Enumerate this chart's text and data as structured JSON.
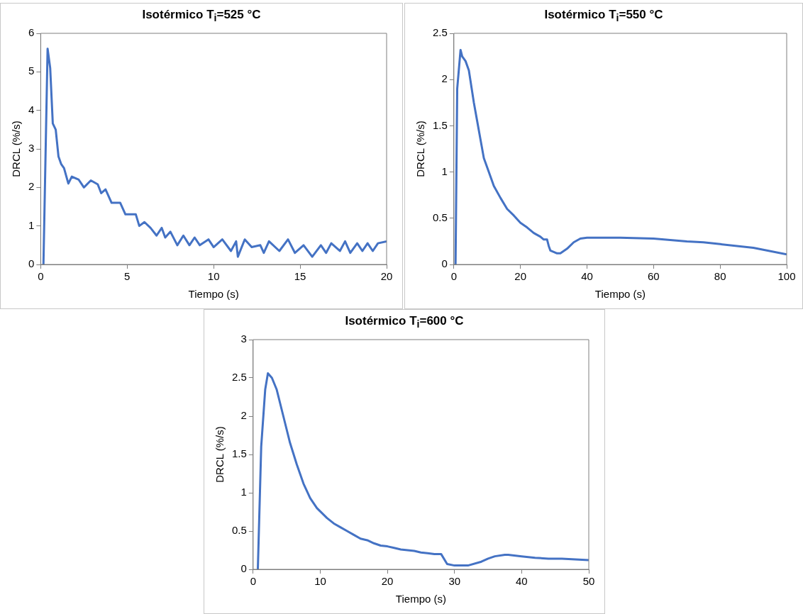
{
  "chart_data": [
    {
      "type": "line",
      "title": "Isotérmico T$_{i}$=525 °C",
      "xlabel": "Tiempo (s)",
      "ylabel": "DRCL (%/s)",
      "xlim": [
        0,
        20
      ],
      "xticks": [
        0,
        5,
        10,
        15,
        20
      ],
      "ylim": [
        0,
        6
      ],
      "yticks": [
        0,
        1,
        2,
        3,
        4,
        5,
        6
      ],
      "grid": false,
      "legend": false,
      "marker": "none",
      "series": [
        {
          "color": "#4472c4",
          "x": [
            0.16,
            0.4,
            0.55,
            0.7,
            0.87,
            1.03,
            1.19,
            1.35,
            1.6,
            1.8,
            2.2,
            2.5,
            2.9,
            3.3,
            3.5,
            3.75,
            4.1,
            4.6,
            4.9,
            5.5,
            5.7,
            6.0,
            6.35,
            6.7,
            7.0,
            7.2,
            7.5,
            7.9,
            8.25,
            8.6,
            8.9,
            9.2,
            9.7,
            10.0,
            10.5,
            11.0,
            11.3,
            11.4,
            11.8,
            12.2,
            12.7,
            12.9,
            13.2,
            13.8,
            14.3,
            14.7,
            15.2,
            15.7,
            16.2,
            16.5,
            16.8,
            17.3,
            17.6,
            17.9,
            18.3,
            18.6,
            18.9,
            19.2,
            19.5,
            20
          ],
          "values": [
            0,
            5.6,
            5.1,
            3.66,
            3.5,
            2.8,
            2.6,
            2.5,
            2.1,
            2.28,
            2.2,
            2.0,
            2.18,
            2.08,
            1.85,
            1.95,
            1.6,
            1.6,
            1.3,
            1.3,
            1.0,
            1.1,
            0.95,
            0.75,
            0.95,
            0.7,
            0.85,
            0.5,
            0.75,
            0.5,
            0.7,
            0.5,
            0.65,
            0.45,
            0.65,
            0.35,
            0.6,
            0.2,
            0.65,
            0.45,
            0.5,
            0.3,
            0.6,
            0.35,
            0.65,
            0.3,
            0.5,
            0.2,
            0.5,
            0.3,
            0.55,
            0.35,
            0.6,
            0.3,
            0.55,
            0.35,
            0.55,
            0.35,
            0.55,
            0.6
          ]
        }
      ]
    },
    {
      "type": "line",
      "title": "Isotérmico T$_{i}$=550 °C",
      "xlabel": "Tiempo (s)",
      "ylabel": "DRCL (%/s)",
      "xlim": [
        0,
        100
      ],
      "xticks": [
        0,
        20,
        40,
        60,
        80,
        100
      ],
      "ylim": [
        0,
        2.5
      ],
      "yticks": [
        0,
        0.5,
        1,
        1.5,
        2,
        2.5
      ],
      "grid": false,
      "legend": false,
      "marker": "none",
      "series": [
        {
          "color": "#4472c4",
          "x": [
            0.5,
            1,
            2,
            2.5,
            3.5,
            4.5,
            6,
            7,
            8,
            9,
            10,
            12,
            14,
            16,
            18,
            20,
            22,
            24,
            26,
            27,
            28,
            28.5,
            29,
            31,
            32,
            34,
            36,
            38,
            40,
            50,
            60,
            70,
            75,
            80,
            90,
            100
          ],
          "values": [
            0,
            1.9,
            2.32,
            2.25,
            2.2,
            2.1,
            1.75,
            1.55,
            1.35,
            1.15,
            1.05,
            0.85,
            0.72,
            0.6,
            0.53,
            0.45,
            0.4,
            0.34,
            0.3,
            0.27,
            0.27,
            0.2,
            0.15,
            0.12,
            0.12,
            0.17,
            0.24,
            0.28,
            0.29,
            0.29,
            0.28,
            0.25,
            0.24,
            0.22,
            0.18,
            0.11
          ]
        }
      ]
    },
    {
      "type": "line",
      "title": "Isotérmico T$_{i}$=600 °C",
      "xlabel": "Tiempo (s)",
      "ylabel": "DRCL (%/s)",
      "xlim": [
        0,
        50
      ],
      "xticks": [
        0,
        10,
        20,
        30,
        40,
        50
      ],
      "ylim": [
        0,
        3
      ],
      "yticks": [
        0,
        0.5,
        1,
        1.5,
        2,
        2.5,
        3
      ],
      "grid": false,
      "legend": false,
      "marker": "none",
      "series": [
        {
          "color": "#4472c4",
          "x": [
            0.7,
            1.2,
            1.8,
            2.2,
            2.8,
            3.5,
            4.5,
            5.5,
            6.5,
            7.5,
            8.5,
            9.5,
            11,
            12,
            13,
            14,
            15,
            16,
            17,
            18,
            19,
            20,
            21,
            22,
            24,
            25,
            26,
            27,
            28,
            28.9,
            30,
            32,
            34,
            35,
            36,
            37.5,
            38,
            40,
            42,
            44,
            46,
            48,
            50
          ],
          "values": [
            0,
            1.6,
            2.35,
            2.56,
            2.5,
            2.35,
            2.0,
            1.65,
            1.37,
            1.12,
            0.93,
            0.8,
            0.67,
            0.6,
            0.55,
            0.5,
            0.45,
            0.4,
            0.38,
            0.34,
            0.31,
            0.3,
            0.28,
            0.26,
            0.24,
            0.22,
            0.21,
            0.2,
            0.2,
            0.07,
            0.05,
            0.05,
            0.1,
            0.14,
            0.17,
            0.19,
            0.19,
            0.17,
            0.15,
            0.14,
            0.14,
            0.13,
            0.12
          ]
        }
      ]
    }
  ]
}
